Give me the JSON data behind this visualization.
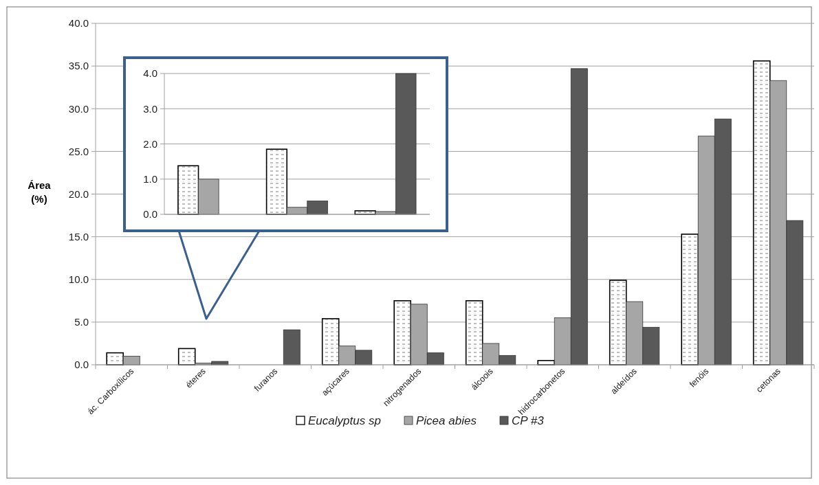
{
  "chart_data": [
    {
      "type": "bar",
      "ylabel": "Área (%)",
      "categories": [
        "ác. Carboxílicos",
        "éteres",
        "furanos",
        "açúcares",
        "nitrogenados",
        "álcoois",
        "hidrocarbonetos",
        "aldeídos",
        "fenóis",
        "cetonas"
      ],
      "series": [
        {
          "name": "Eucalyptus sp",
          "color": "#ffffff",
          "values": [
            1.4,
            1.9,
            null,
            5.4,
            7.5,
            7.5,
            0.5,
            9.9,
            15.3,
            35.6
          ]
        },
        {
          "name": "Picea abies",
          "color": "#a6a6a6",
          "values": [
            1.0,
            0.2,
            null,
            2.2,
            7.1,
            2.5,
            5.5,
            7.4,
            26.8,
            33.3
          ]
        },
        {
          "name": "CP #3",
          "color": "#595959",
          "values": [
            null,
            0.4,
            4.1,
            1.7,
            1.4,
            1.1,
            34.7,
            4.4,
            28.8,
            16.9
          ]
        }
      ],
      "ylim": [
        0,
        40
      ],
      "yticks": [
        {
          "value": 0,
          "label": "0.0"
        },
        {
          "value": 5,
          "label": "5.0"
        },
        {
          "value": 10,
          "label": "10.0"
        },
        {
          "value": 15,
          "label": "15.0"
        },
        {
          "value": 20,
          "label": "20.0"
        },
        {
          "value": 25,
          "label": "25.0"
        },
        {
          "value": 30,
          "label": "30.0"
        },
        {
          "value": 35,
          "label": "35.0"
        },
        {
          "value": 40,
          "label": "40.0"
        }
      ],
      "grid": "y",
      "legend": "bottom"
    },
    {
      "type": "bar",
      "categories": [
        null,
        null,
        null
      ],
      "series": [
        {
          "color": "#ffffff",
          "values": [
            1.38,
            1.85,
            0.1
          ]
        },
        {
          "color": "#a6a6a6",
          "values": [
            1.0,
            0.2,
            0.08
          ]
        },
        {
          "color": "#595959",
          "values": [
            null,
            0.38,
            4.0
          ]
        }
      ],
      "ylim": [
        0,
        4
      ],
      "yticks": [
        {
          "value": 0,
          "label": "0.0"
        },
        {
          "value": 1,
          "label": "1.0"
        },
        {
          "value": 2,
          "label": "2.0"
        },
        {
          "value": 3,
          "label": "3.0"
        },
        {
          "value": 4,
          "label": "4.0"
        }
      ],
      "grid": "y",
      "legend": false
    }
  ]
}
